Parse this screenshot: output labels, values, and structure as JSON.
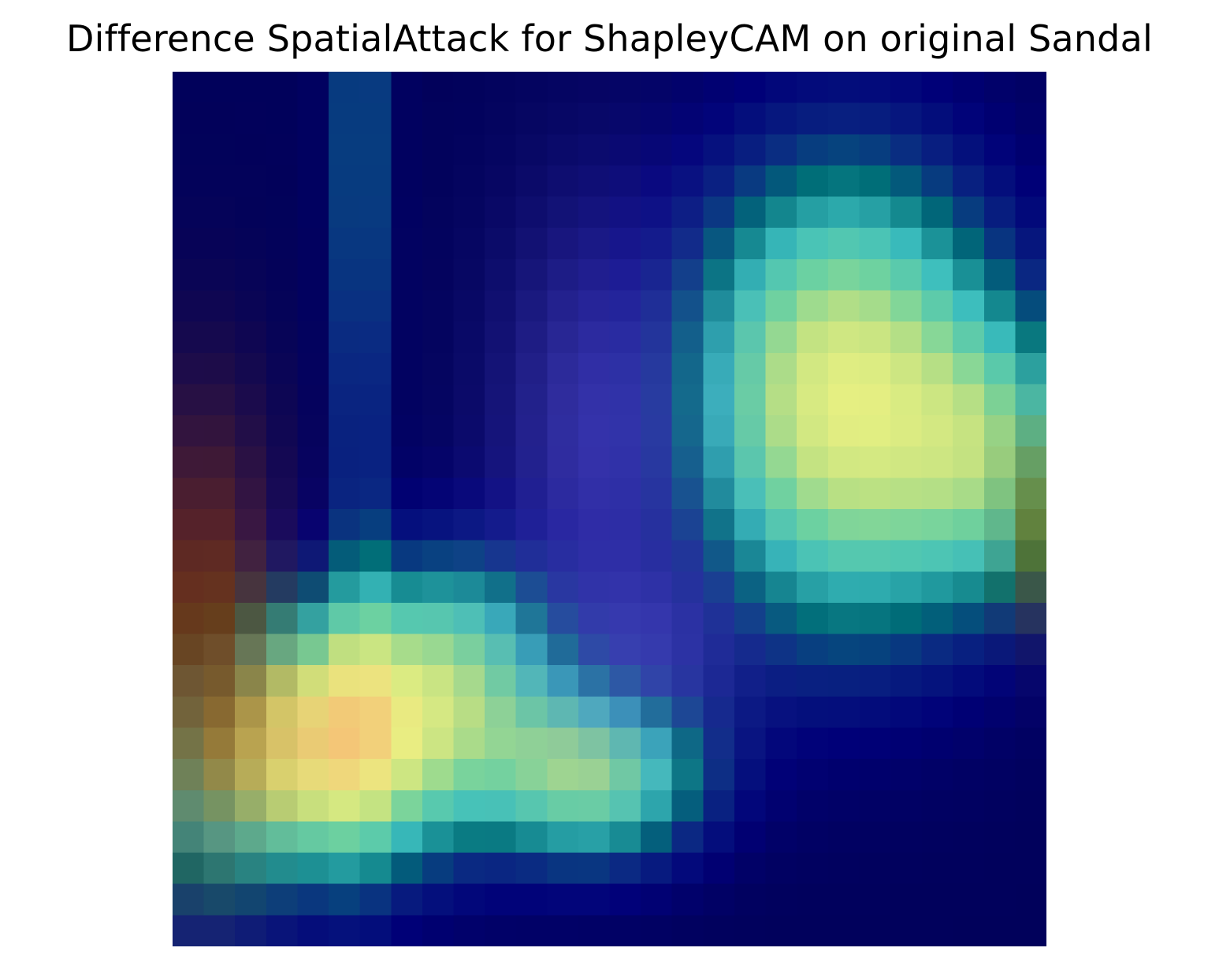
{
  "figure": {
    "title": "Difference SpatialAttack for ShapleyCAM on original Sandal"
  },
  "image": {
    "description_kind": "saliency-overlay heatmap",
    "grid_rows": 28,
    "grid_cols": 28,
    "palette": {
      "deep": "#02024e",
      "navy": "#00007a",
      "blue": "#10327f",
      "teal": "#007a7a",
      "cyan": "#60d8e0",
      "green": "#78c080",
      "yellow": "#e8f080",
      "olive": "#7a7200",
      "brown": "#7a2c00",
      "orange": "#f0b070",
      "violet": "#6060e0"
    }
  }
}
